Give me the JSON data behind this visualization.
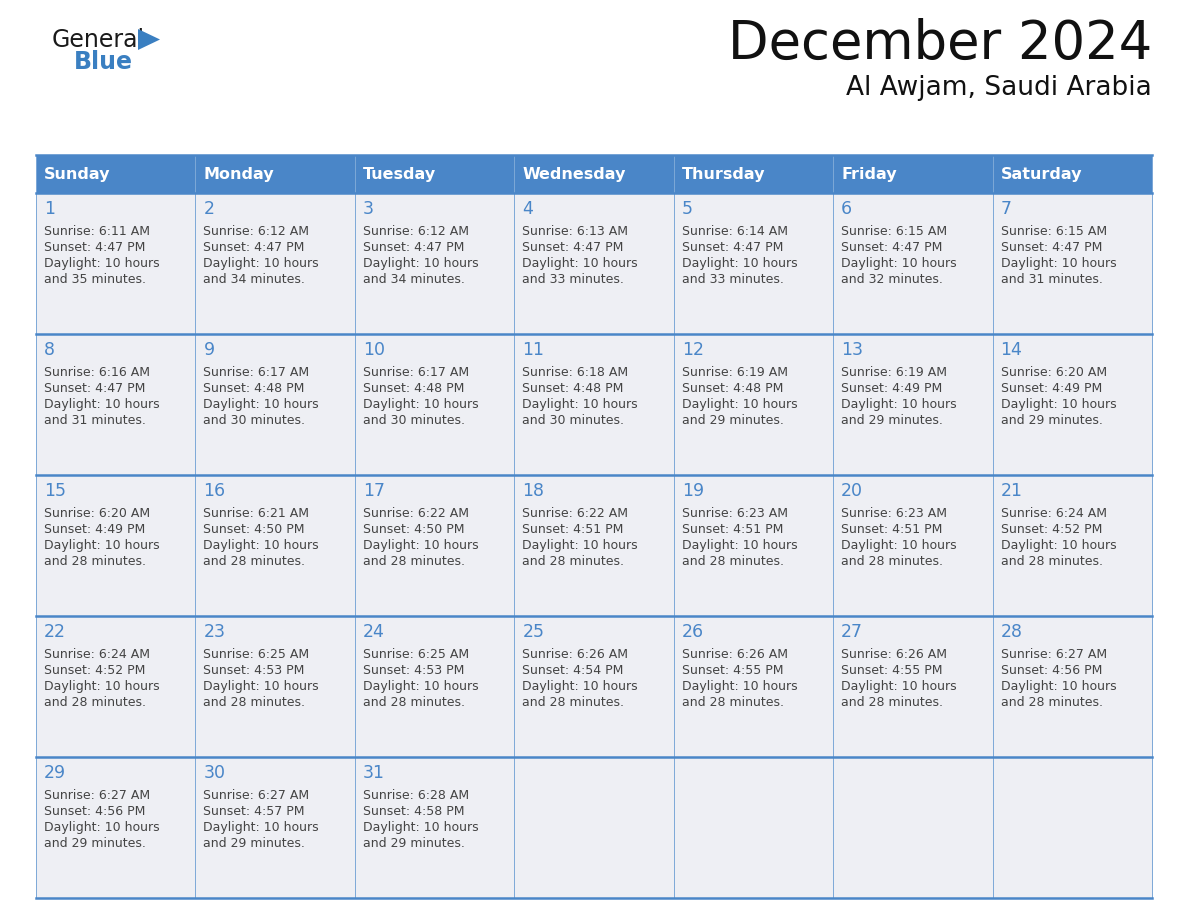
{
  "title": "December 2024",
  "subtitle": "Al Awjam, Saudi Arabia",
  "days_of_week": [
    "Sunday",
    "Monday",
    "Tuesday",
    "Wednesday",
    "Thursday",
    "Friday",
    "Saturday"
  ],
  "header_bg": "#4a86c8",
  "header_text": "#FFFFFF",
  "row_bg": "#eeeff4",
  "grid_line_color": "#4a86c8",
  "day_number_color": "#4a86c8",
  "cell_text_color": "#444444",
  "calendar_data": [
    [
      {
        "day": 1,
        "sunrise": "6:11 AM",
        "sunset": "4:47 PM",
        "daylight_extra": "35 minutes."
      },
      {
        "day": 2,
        "sunrise": "6:12 AM",
        "sunset": "4:47 PM",
        "daylight_extra": "34 minutes."
      },
      {
        "day": 3,
        "sunrise": "6:12 AM",
        "sunset": "4:47 PM",
        "daylight_extra": "34 minutes."
      },
      {
        "day": 4,
        "sunrise": "6:13 AM",
        "sunset": "4:47 PM",
        "daylight_extra": "33 minutes."
      },
      {
        "day": 5,
        "sunrise": "6:14 AM",
        "sunset": "4:47 PM",
        "daylight_extra": "33 minutes."
      },
      {
        "day": 6,
        "sunrise": "6:15 AM",
        "sunset": "4:47 PM",
        "daylight_extra": "32 minutes."
      },
      {
        "day": 7,
        "sunrise": "6:15 AM",
        "sunset": "4:47 PM",
        "daylight_extra": "31 minutes."
      }
    ],
    [
      {
        "day": 8,
        "sunrise": "6:16 AM",
        "sunset": "4:47 PM",
        "daylight_extra": "31 minutes."
      },
      {
        "day": 9,
        "sunrise": "6:17 AM",
        "sunset": "4:48 PM",
        "daylight_extra": "30 minutes."
      },
      {
        "day": 10,
        "sunrise": "6:17 AM",
        "sunset": "4:48 PM",
        "daylight_extra": "30 minutes."
      },
      {
        "day": 11,
        "sunrise": "6:18 AM",
        "sunset": "4:48 PM",
        "daylight_extra": "30 minutes."
      },
      {
        "day": 12,
        "sunrise": "6:19 AM",
        "sunset": "4:48 PM",
        "daylight_extra": "29 minutes."
      },
      {
        "day": 13,
        "sunrise": "6:19 AM",
        "sunset": "4:49 PM",
        "daylight_extra": "29 minutes."
      },
      {
        "day": 14,
        "sunrise": "6:20 AM",
        "sunset": "4:49 PM",
        "daylight_extra": "29 minutes."
      }
    ],
    [
      {
        "day": 15,
        "sunrise": "6:20 AM",
        "sunset": "4:49 PM",
        "daylight_extra": "28 minutes."
      },
      {
        "day": 16,
        "sunrise": "6:21 AM",
        "sunset": "4:50 PM",
        "daylight_extra": "28 minutes."
      },
      {
        "day": 17,
        "sunrise": "6:22 AM",
        "sunset": "4:50 PM",
        "daylight_extra": "28 minutes."
      },
      {
        "day": 18,
        "sunrise": "6:22 AM",
        "sunset": "4:51 PM",
        "daylight_extra": "28 minutes."
      },
      {
        "day": 19,
        "sunrise": "6:23 AM",
        "sunset": "4:51 PM",
        "daylight_extra": "28 minutes."
      },
      {
        "day": 20,
        "sunrise": "6:23 AM",
        "sunset": "4:51 PM",
        "daylight_extra": "28 minutes."
      },
      {
        "day": 21,
        "sunrise": "6:24 AM",
        "sunset": "4:52 PM",
        "daylight_extra": "28 minutes."
      }
    ],
    [
      {
        "day": 22,
        "sunrise": "6:24 AM",
        "sunset": "4:52 PM",
        "daylight_extra": "28 minutes."
      },
      {
        "day": 23,
        "sunrise": "6:25 AM",
        "sunset": "4:53 PM",
        "daylight_extra": "28 minutes."
      },
      {
        "day": 24,
        "sunrise": "6:25 AM",
        "sunset": "4:53 PM",
        "daylight_extra": "28 minutes."
      },
      {
        "day": 25,
        "sunrise": "6:26 AM",
        "sunset": "4:54 PM",
        "daylight_extra": "28 minutes."
      },
      {
        "day": 26,
        "sunrise": "6:26 AM",
        "sunset": "4:55 PM",
        "daylight_extra": "28 minutes."
      },
      {
        "day": 27,
        "sunrise": "6:26 AM",
        "sunset": "4:55 PM",
        "daylight_extra": "28 minutes."
      },
      {
        "day": 28,
        "sunrise": "6:27 AM",
        "sunset": "4:56 PM",
        "daylight_extra": "28 minutes."
      }
    ],
    [
      {
        "day": 29,
        "sunrise": "6:27 AM",
        "sunset": "4:56 PM",
        "daylight_extra": "29 minutes."
      },
      {
        "day": 30,
        "sunrise": "6:27 AM",
        "sunset": "4:57 PM",
        "daylight_extra": "29 minutes."
      },
      {
        "day": 31,
        "sunrise": "6:28 AM",
        "sunset": "4:58 PM",
        "daylight_extra": "29 minutes."
      },
      null,
      null,
      null,
      null
    ]
  ],
  "logo_general_color": "#1a1a1a",
  "logo_blue_color": "#3a7fc1",
  "logo_triangle_color": "#3a7fc1"
}
